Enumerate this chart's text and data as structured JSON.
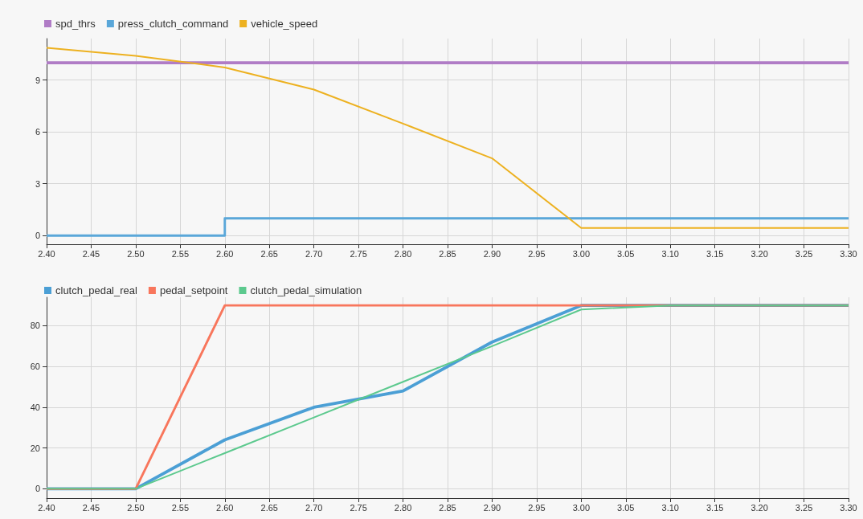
{
  "chart_data": [
    {
      "type": "line",
      "xlim": [
        2.4,
        3.3
      ],
      "ylim": [
        -0.5,
        11.4
      ],
      "yticks": [
        0,
        3,
        6,
        9
      ],
      "xticks": [
        {
          "value": 2.4,
          "label": "2.40"
        },
        {
          "value": 2.45,
          "label": "2.45"
        },
        {
          "value": 2.5,
          "label": "2.50"
        },
        {
          "value": 2.55,
          "label": "2.55"
        },
        {
          "value": 2.6,
          "label": "2.60"
        },
        {
          "value": 2.65,
          "label": "2.65"
        },
        {
          "value": 2.7,
          "label": "2.70"
        },
        {
          "value": 2.75,
          "label": "2.75"
        },
        {
          "value": 2.8,
          "label": "2.80"
        },
        {
          "value": 2.85,
          "label": "2.85"
        },
        {
          "value": 2.9,
          "label": "2.90"
        },
        {
          "value": 2.95,
          "label": "2.95"
        },
        {
          "value": 3.0,
          "label": "3.00"
        },
        {
          "value": 3.05,
          "label": "3.05"
        },
        {
          "value": 3.1,
          "label": "3.10"
        },
        {
          "value": 3.15,
          "label": "3.15"
        },
        {
          "value": 3.2,
          "label": "3.20"
        },
        {
          "value": 3.25,
          "label": "3.25"
        },
        {
          "value": 3.3,
          "label": "3.30"
        }
      ],
      "grid": true,
      "legend": "top left",
      "series": [
        {
          "name": "spd_thrs",
          "color": "#b07cc6",
          "x": [
            2.4,
            3.3
          ],
          "values": [
            10,
            10
          ]
        },
        {
          "name": "press_clutch_command",
          "type": "step",
          "color": "#5aa7d9",
          "x": [
            2.4,
            2.6,
            3.3
          ],
          "values": [
            0,
            1,
            1
          ]
        },
        {
          "name": "vehicle_speed",
          "color": "#edb120",
          "x": [
            2.4,
            2.5,
            2.6,
            2.7,
            2.8,
            2.9,
            3.0,
            3.3
          ],
          "values": [
            10.86,
            10.4,
            9.73,
            8.45,
            6.48,
            4.47,
            0.44,
            0.44
          ]
        }
      ]
    },
    {
      "type": "line",
      "xlim": [
        2.4,
        3.3
      ],
      "ylim": [
        -4.6,
        94
      ],
      "yticks": [
        0,
        20,
        40,
        60,
        80
      ],
      "xticks": [
        {
          "value": 2.4,
          "label": "2.40"
        },
        {
          "value": 2.45,
          "label": "2.45"
        },
        {
          "value": 2.5,
          "label": "2.50"
        },
        {
          "value": 2.55,
          "label": "2.55"
        },
        {
          "value": 2.6,
          "label": "2.60"
        },
        {
          "value": 2.65,
          "label": "2.65"
        },
        {
          "value": 2.7,
          "label": "2.70"
        },
        {
          "value": 2.75,
          "label": "2.75"
        },
        {
          "value": 2.8,
          "label": "2.80"
        },
        {
          "value": 2.85,
          "label": "2.85"
        },
        {
          "value": 2.9,
          "label": "2.90"
        },
        {
          "value": 2.95,
          "label": "2.95"
        },
        {
          "value": 3.0,
          "label": "3.00"
        },
        {
          "value": 3.05,
          "label": "3.05"
        },
        {
          "value": 3.1,
          "label": "3.10"
        },
        {
          "value": 3.15,
          "label": "3.15"
        },
        {
          "value": 3.2,
          "label": "3.20"
        },
        {
          "value": 3.25,
          "label": "3.25"
        },
        {
          "value": 3.3,
          "label": "3.30"
        }
      ],
      "grid": true,
      "legend": "top left",
      "series": [
        {
          "name": "clutch_pedal_real",
          "color": "#4b9fd5",
          "x": [
            2.4,
            2.5,
            2.6,
            2.7,
            2.8,
            2.9,
            3.0,
            3.3
          ],
          "values": [
            0,
            0,
            24,
            40,
            48,
            72,
            90,
            90
          ]
        },
        {
          "name": "pedal_setpoint",
          "color": "#f8765c",
          "x": [
            2.4,
            2.5,
            2.6,
            3.3
          ],
          "values": [
            0,
            0,
            90,
            90
          ]
        },
        {
          "name": "clutch_pedal_simulation",
          "color": "#5cc98e",
          "x": [
            2.4,
            2.5,
            2.6,
            2.7,
            2.8,
            2.9,
            3.0,
            3.1,
            3.3
          ],
          "values": [
            0,
            0,
            17.5,
            35,
            52.5,
            70,
            88,
            90,
            90
          ]
        }
      ]
    }
  ]
}
